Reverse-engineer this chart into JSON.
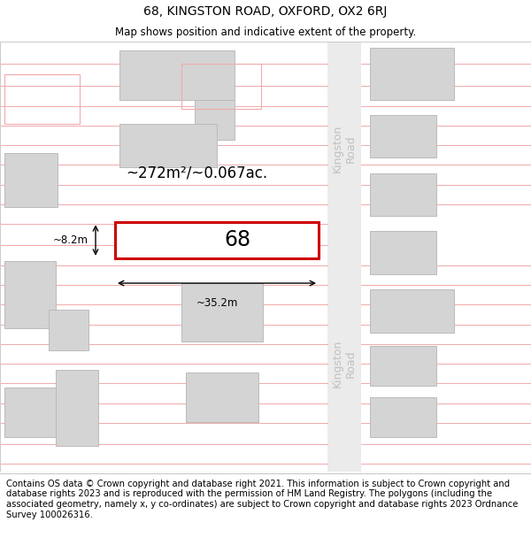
{
  "title": "68, KINGSTON ROAD, OXFORD, OX2 6RJ",
  "subtitle": "Map shows position and indicative extent of the property.",
  "footer": "Contains OS data © Crown copyright and database right 2021. This information is subject to Crown copyright and database rights 2023 and is reproduced with the permission of HM Land Registry. The polygons (including the associated geometry, namely x, y co-ordinates) are subject to Crown copyright and database rights 2023 Ordnance Survey 100026316.",
  "area_label": "~272m²/~0.067ac.",
  "width_label": "~35.2m",
  "height_label": "~8.2m",
  "property_number": "68",
  "bg_color": "#ffffff",
  "building_fill": "#d4d4d4",
  "building_edge": "#bbbbbb",
  "road_line_color": "#f0aaaa",
  "highlight_fill": "#ffffff",
  "highlight_edge": "#cc0000",
  "road_label_color": "#c0c0c0",
  "road_bg": "#ebebeb",
  "title_fontsize": 10,
  "subtitle_fontsize": 8.5,
  "footer_fontsize": 7.2,
  "map_fontsize": 9,
  "prop_label_fontsize": 17,
  "area_fontsize": 12,
  "dim_fontsize": 8.5
}
